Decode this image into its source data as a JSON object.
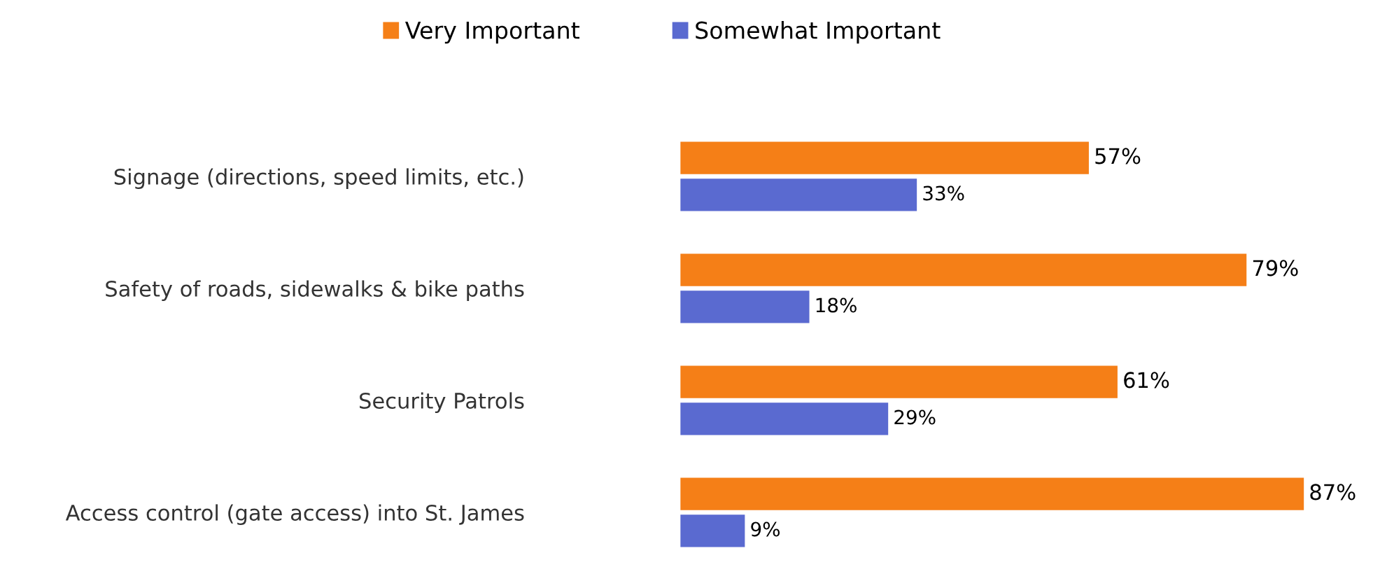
{
  "chart_data": {
    "type": "bar",
    "orientation": "horizontal",
    "categories": [
      "Signage (directions, speed limits, etc.)",
      "Safety of roads, sidewalks & bike paths",
      "Security Patrols",
      "Access control (gate access) into St. James"
    ],
    "series": [
      {
        "name": "Very Important",
        "color": "#f57f17",
        "values": [
          57,
          79,
          61,
          87
        ],
        "value_labels": [
          "57%",
          "79%",
          "61%",
          "87%"
        ]
      },
      {
        "name": "Somewhat Important",
        "color": "#5a6ad0",
        "values": [
          33,
          18,
          29,
          9
        ],
        "value_labels": [
          "33%",
          "18%",
          "29%",
          "9%"
        ]
      }
    ],
    "legend": "top",
    "grid": false
  }
}
